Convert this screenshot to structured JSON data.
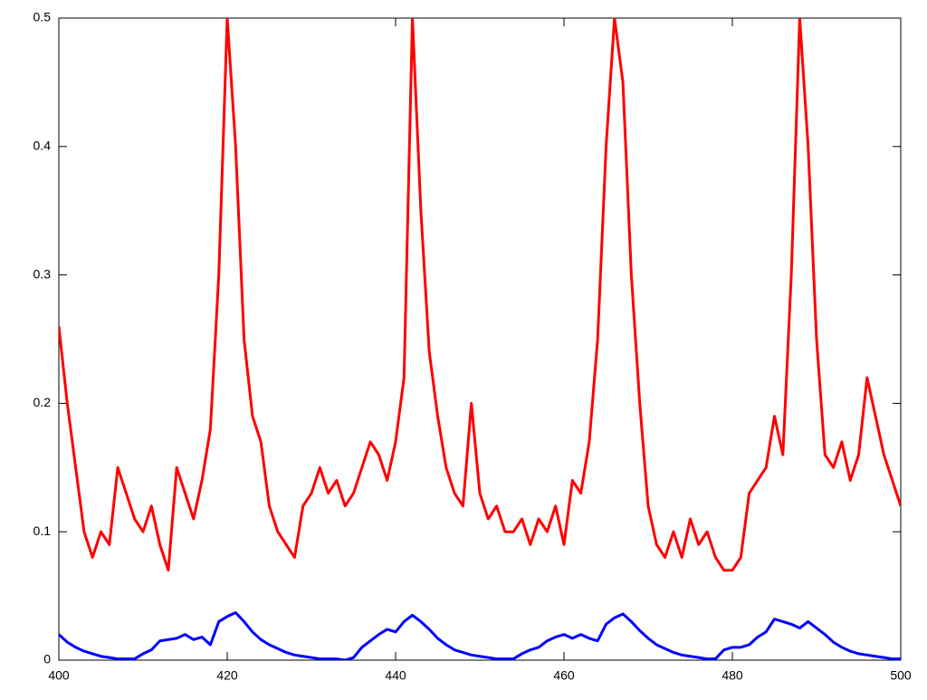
{
  "chart_data": {
    "type": "line",
    "x": [
      400,
      401,
      402,
      403,
      404,
      405,
      406,
      407,
      408,
      409,
      410,
      411,
      412,
      413,
      414,
      415,
      416,
      417,
      418,
      419,
      420,
      421,
      422,
      423,
      424,
      425,
      426,
      427,
      428,
      429,
      430,
      431,
      432,
      433,
      434,
      435,
      436,
      437,
      438,
      439,
      440,
      441,
      442,
      443,
      444,
      445,
      446,
      447,
      448,
      449,
      450,
      451,
      452,
      453,
      454,
      455,
      456,
      457,
      458,
      459,
      460,
      461,
      462,
      463,
      464,
      465,
      466,
      467,
      468,
      469,
      470,
      471,
      472,
      473,
      474,
      475,
      476,
      477,
      478,
      479,
      480,
      481,
      482,
      483,
      484,
      485,
      486,
      487,
      488,
      489,
      490,
      491,
      492,
      493,
      494,
      495,
      496,
      497,
      498,
      499,
      500
    ],
    "series": [
      {
        "color": "#ff0000",
        "values": [
          0.26,
          0.2,
          0.15,
          0.1,
          0.08,
          0.1,
          0.09,
          0.15,
          0.13,
          0.11,
          0.1,
          0.12,
          0.09,
          0.07,
          0.15,
          0.13,
          0.11,
          0.14,
          0.18,
          0.3,
          0.5,
          0.4,
          0.25,
          0.19,
          0.17,
          0.12,
          0.1,
          0.09,
          0.08,
          0.12,
          0.13,
          0.15,
          0.13,
          0.14,
          0.12,
          0.13,
          0.15,
          0.17,
          0.16,
          0.14,
          0.17,
          0.22,
          0.5,
          0.35,
          0.24,
          0.19,
          0.15,
          0.13,
          0.12,
          0.2,
          0.13,
          0.11,
          0.12,
          0.1,
          0.1,
          0.11,
          0.09,
          0.11,
          0.1,
          0.12,
          0.09,
          0.14,
          0.13,
          0.17,
          0.25,
          0.4,
          0.5,
          0.45,
          0.3,
          0.2,
          0.12,
          0.09,
          0.08,
          0.1,
          0.08,
          0.11,
          0.09,
          0.1,
          0.08,
          0.07,
          0.07,
          0.08,
          0.13,
          0.14,
          0.15,
          0.19,
          0.16,
          0.3,
          0.5,
          0.4,
          0.25,
          0.16,
          0.15,
          0.17,
          0.14,
          0.16,
          0.22,
          0.19,
          0.16,
          0.14,
          0.12
        ]
      },
      {
        "color": "#0000ff",
        "values": [
          0.02,
          0.014,
          0.01,
          0.007,
          0.005,
          0.003,
          0.002,
          0.001,
          0.001,
          0.001,
          0.005,
          0.008,
          0.015,
          0.016,
          0.017,
          0.02,
          0.016,
          0.018,
          0.012,
          0.03,
          0.034,
          0.037,
          0.03,
          0.022,
          0.016,
          0.012,
          0.009,
          0.006,
          0.004,
          0.003,
          0.002,
          0.001,
          0.001,
          0.001,
          0,
          0.002,
          0.01,
          0.015,
          0.02,
          0.024,
          0.022,
          0.03,
          0.035,
          0.03,
          0.024,
          0.017,
          0.012,
          0.008,
          0.006,
          0.004,
          0.003,
          0.002,
          0.001,
          0.001,
          0.001,
          0.005,
          0.008,
          0.01,
          0.015,
          0.018,
          0.02,
          0.017,
          0.02,
          0.017,
          0.015,
          0.028,
          0.033,
          0.036,
          0.03,
          0.023,
          0.017,
          0.012,
          0.009,
          0.006,
          0.004,
          0.003,
          0.002,
          0.001,
          0.001,
          0.008,
          0.01,
          0.01,
          0.012,
          0.018,
          0.022,
          0.032,
          0.03,
          0.028,
          0.025,
          0.03,
          0.025,
          0.02,
          0.014,
          0.01,
          0.007,
          0.005,
          0.004,
          0.003,
          0.002,
          0.001,
          0.001
        ]
      }
    ],
    "xlim": [
      400,
      500
    ],
    "xticks": [
      400,
      420,
      440,
      460,
      480,
      500
    ],
    "ylim": [
      0,
      0.5
    ],
    "yticks": [
      0,
      0.1,
      0.2,
      0.3,
      0.4,
      0.5
    ]
  }
}
